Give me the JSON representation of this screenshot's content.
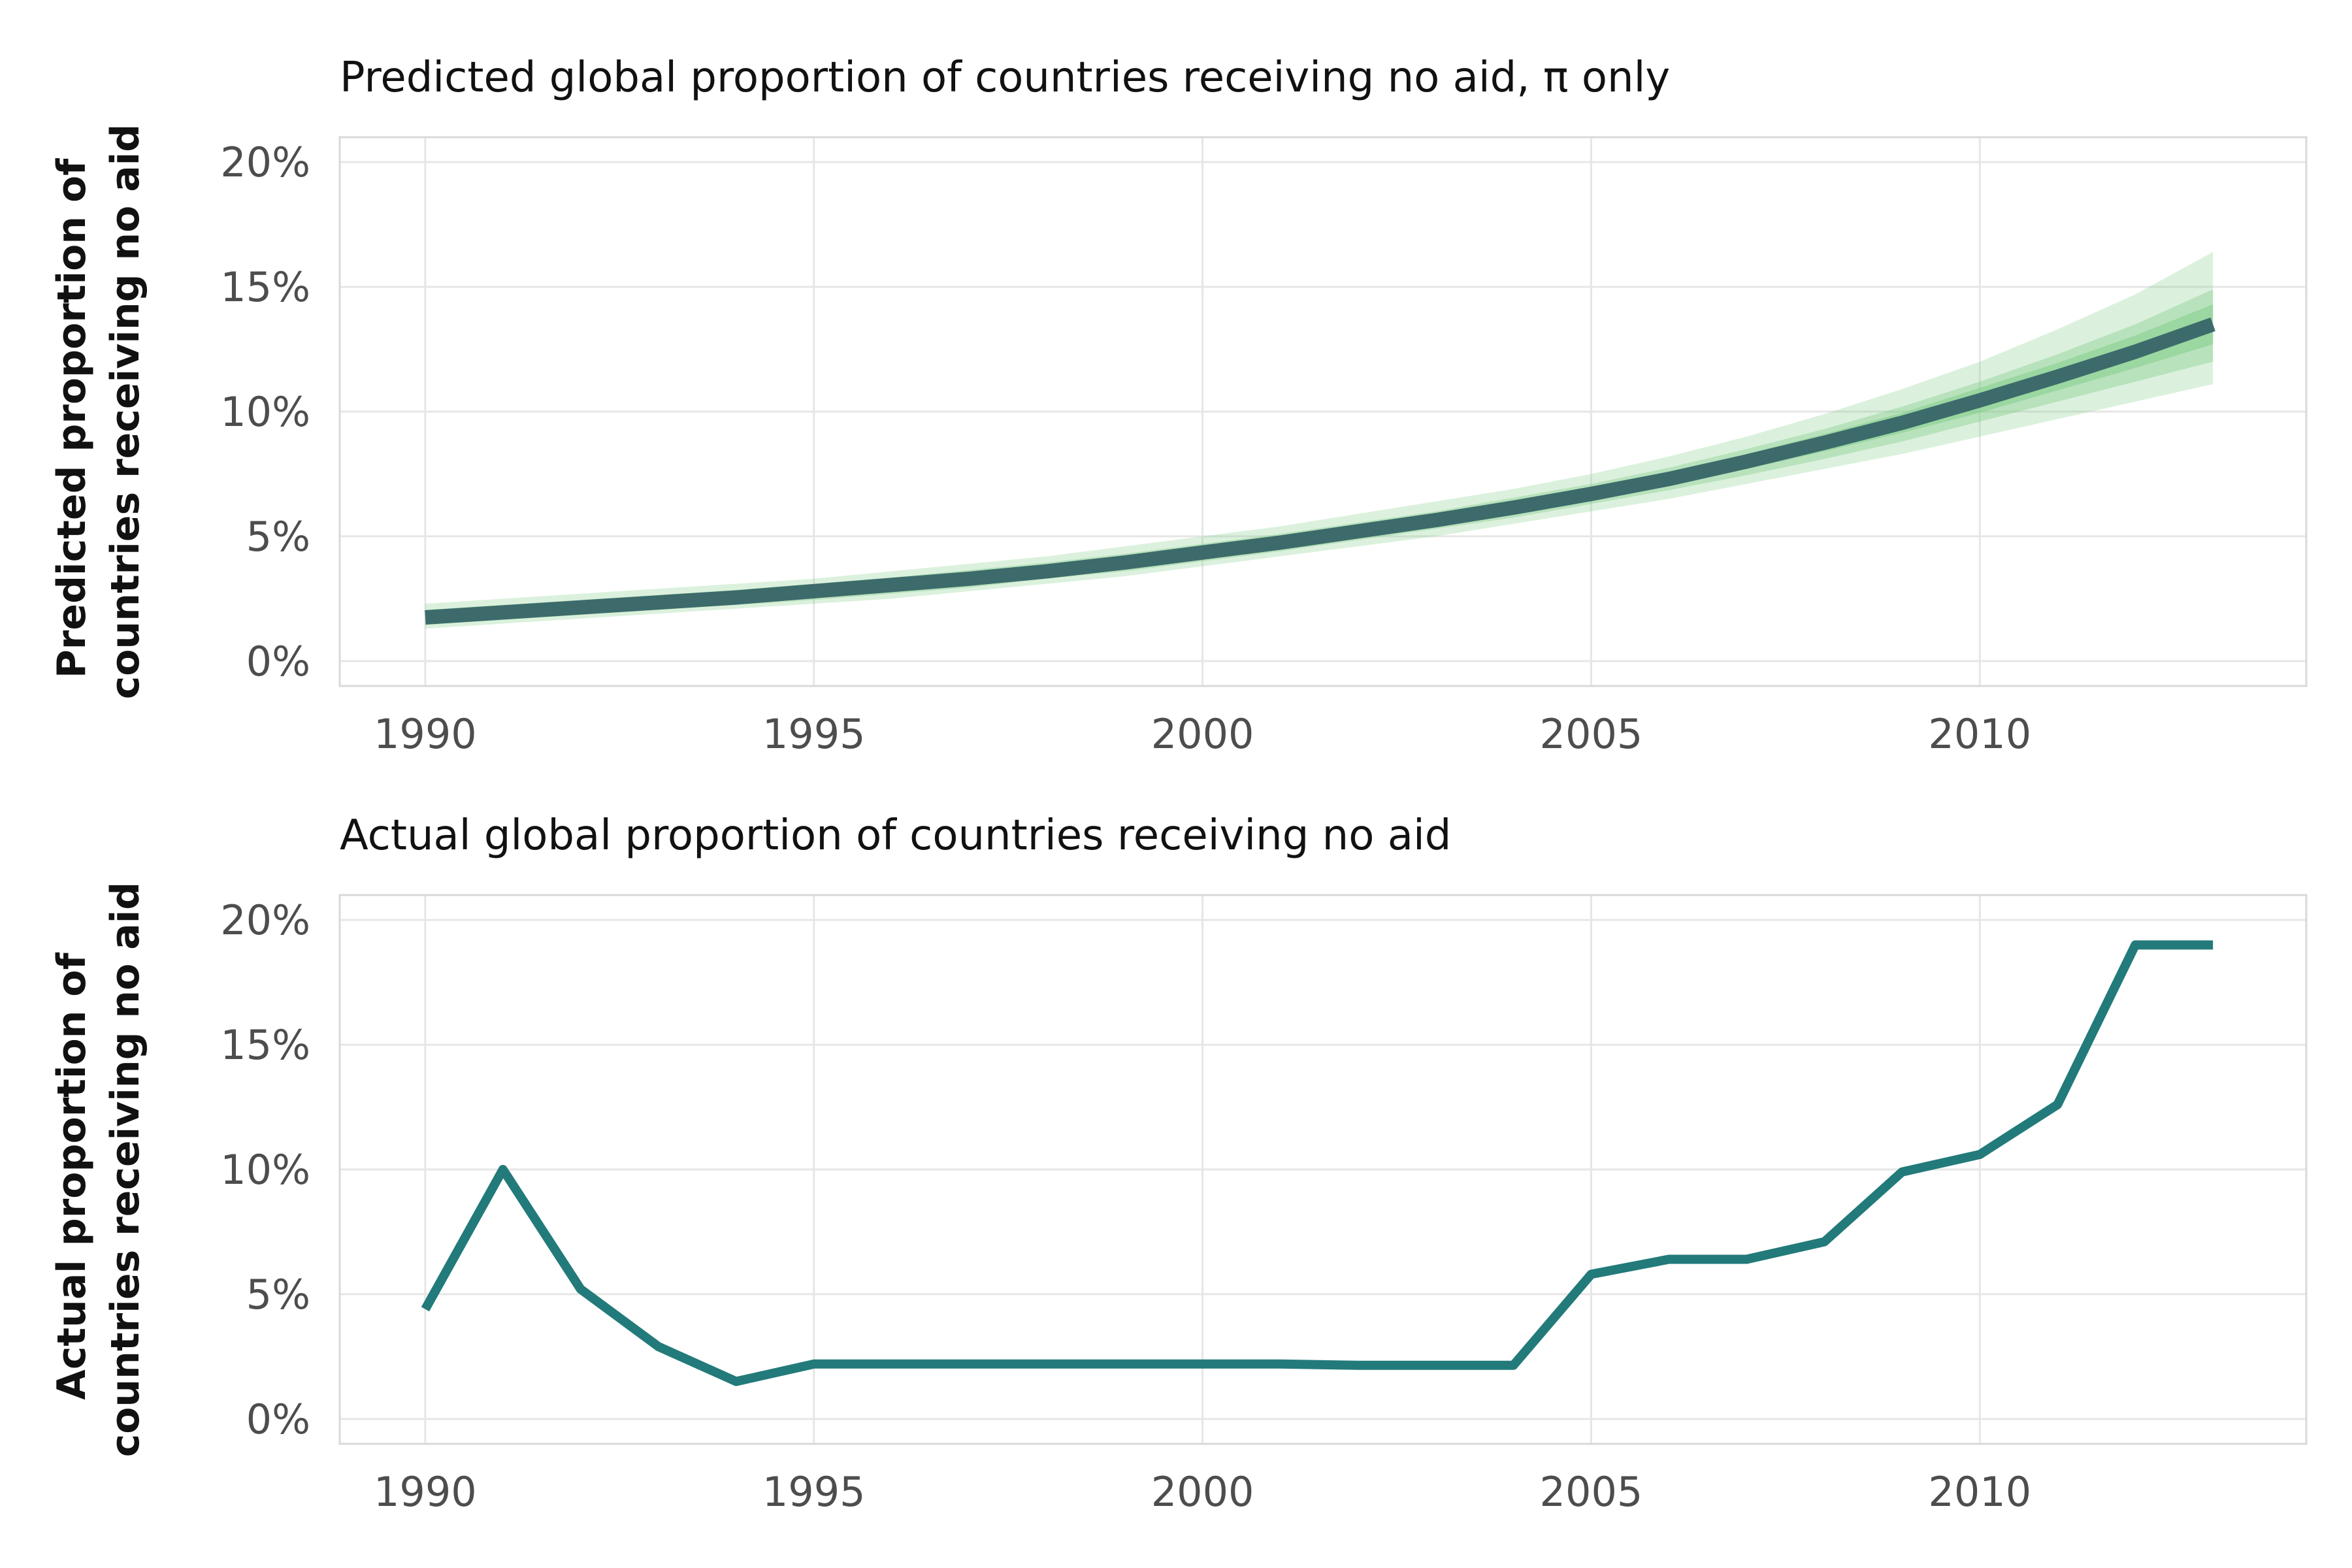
{
  "chart_data": [
    {
      "type": "line",
      "title": "Predicted global proportion of countries receiving no aid, π only",
      "ylabel": "Predicted proportion of countries receiving no aid",
      "ylabel_lines": [
        "Predicted proportion of",
        "countries receiving no aid"
      ],
      "xlabel": "",
      "xlim": [
        1988.9,
        2014.2
      ],
      "ylim": [
        -1,
        21
      ],
      "xticks": [
        1990,
        1995,
        2000,
        2005,
        2010
      ],
      "xtick_labels": [
        "1990",
        "1995",
        "2000",
        "2005",
        "2010"
      ],
      "yticks": [
        0,
        5,
        10,
        15,
        20
      ],
      "ytick_labels": [
        "0%",
        "5%",
        "10%",
        "15%",
        "20%"
      ],
      "grid": true,
      "line_color": "#3d6b6b",
      "band_color": "#7ecb86",
      "x": [
        1990,
        1991,
        1992,
        1993,
        1994,
        1995,
        1996,
        1997,
        1998,
        1999,
        2000,
        2001,
        2002,
        2003,
        2004,
        2005,
        2006,
        2007,
        2008,
        2009,
        2010,
        2011,
        2012,
        2013
      ],
      "y": [
        1.75,
        1.95,
        2.15,
        2.35,
        2.55,
        2.8,
        3.05,
        3.3,
        3.6,
        3.95,
        4.35,
        4.75,
        5.2,
        5.65,
        6.15,
        6.7,
        7.3,
        8.0,
        8.75,
        9.55,
        10.45,
        11.4,
        12.4,
        13.5
      ],
      "intervals": [
        {
          "level": "outer",
          "opacity": 0.28,
          "lower": [
            1.3,
            1.5,
            1.7,
            1.9,
            2.1,
            2.3,
            2.5,
            2.8,
            3.1,
            3.4,
            3.8,
            4.2,
            4.6,
            5.0,
            5.5,
            6.0,
            6.5,
            7.1,
            7.7,
            8.3,
            9.0,
            9.7,
            10.4,
            11.1
          ],
          "upper": [
            2.3,
            2.5,
            2.7,
            2.9,
            3.1,
            3.3,
            3.6,
            3.9,
            4.2,
            4.6,
            5.0,
            5.4,
            5.9,
            6.4,
            6.9,
            7.5,
            8.2,
            9.0,
            9.9,
            10.9,
            12.0,
            13.3,
            14.7,
            16.4
          ]
        },
        {
          "level": "middle",
          "opacity": 0.38,
          "lower": [
            1.45,
            1.65,
            1.85,
            2.05,
            2.25,
            2.45,
            2.7,
            2.95,
            3.3,
            3.6,
            4.0,
            4.4,
            4.85,
            5.3,
            5.75,
            6.3,
            6.85,
            7.45,
            8.1,
            8.8,
            9.6,
            10.4,
            11.2,
            12.0
          ],
          "upper": [
            2.05,
            2.25,
            2.45,
            2.65,
            2.85,
            3.1,
            3.35,
            3.65,
            3.95,
            4.3,
            4.7,
            5.1,
            5.55,
            6.0,
            6.55,
            7.1,
            7.75,
            8.5,
            9.3,
            10.2,
            11.2,
            12.3,
            13.5,
            14.9
          ]
        },
        {
          "level": "inner",
          "opacity": 0.5,
          "lower": [
            1.6,
            1.8,
            2.0,
            2.2,
            2.4,
            2.6,
            2.85,
            3.1,
            3.45,
            3.75,
            4.15,
            4.55,
            5.0,
            5.45,
            5.95,
            6.5,
            7.05,
            7.7,
            8.4,
            9.15,
            9.95,
            10.85,
            11.75,
            12.7
          ],
          "upper": [
            1.9,
            2.1,
            2.3,
            2.5,
            2.7,
            2.95,
            3.2,
            3.5,
            3.8,
            4.15,
            4.55,
            4.95,
            5.4,
            5.85,
            6.35,
            6.9,
            7.55,
            8.3,
            9.1,
            9.95,
            10.95,
            11.95,
            13.05,
            14.3
          ]
        }
      ]
    },
    {
      "type": "line",
      "title": "Actual global proportion of countries receiving no aid",
      "ylabel": "Actual proportion of countries receiving no aid",
      "ylabel_lines": [
        "Actual proportion of",
        "countries receiving no aid"
      ],
      "xlabel": "",
      "xlim": [
        1988.9,
        2014.2
      ],
      "ylim": [
        -1,
        21
      ],
      "xticks": [
        1990,
        1995,
        2000,
        2005,
        2010
      ],
      "xtick_labels": [
        "1990",
        "1995",
        "2000",
        "2005",
        "2010"
      ],
      "yticks": [
        0,
        5,
        10,
        15,
        20
      ],
      "ytick_labels": [
        "0%",
        "5%",
        "10%",
        "15%",
        "20%"
      ],
      "grid": true,
      "line_color": "#237a7a",
      "x": [
        1990,
        1991,
        1992,
        1993,
        1994,
        1995,
        1996,
        1997,
        1998,
        1999,
        2000,
        2001,
        2002,
        2003,
        2004,
        2005,
        2006,
        2007,
        2008,
        2009,
        2010,
        2011,
        2012,
        2013
      ],
      "y": [
        4.4,
        10.0,
        5.2,
        2.9,
        1.5,
        2.2,
        2.2,
        2.2,
        2.2,
        2.2,
        2.2,
        2.2,
        2.15,
        2.15,
        2.15,
        5.8,
        6.4,
        6.4,
        7.1,
        9.9,
        10.6,
        12.6,
        19.0,
        19.0
      ]
    }
  ]
}
